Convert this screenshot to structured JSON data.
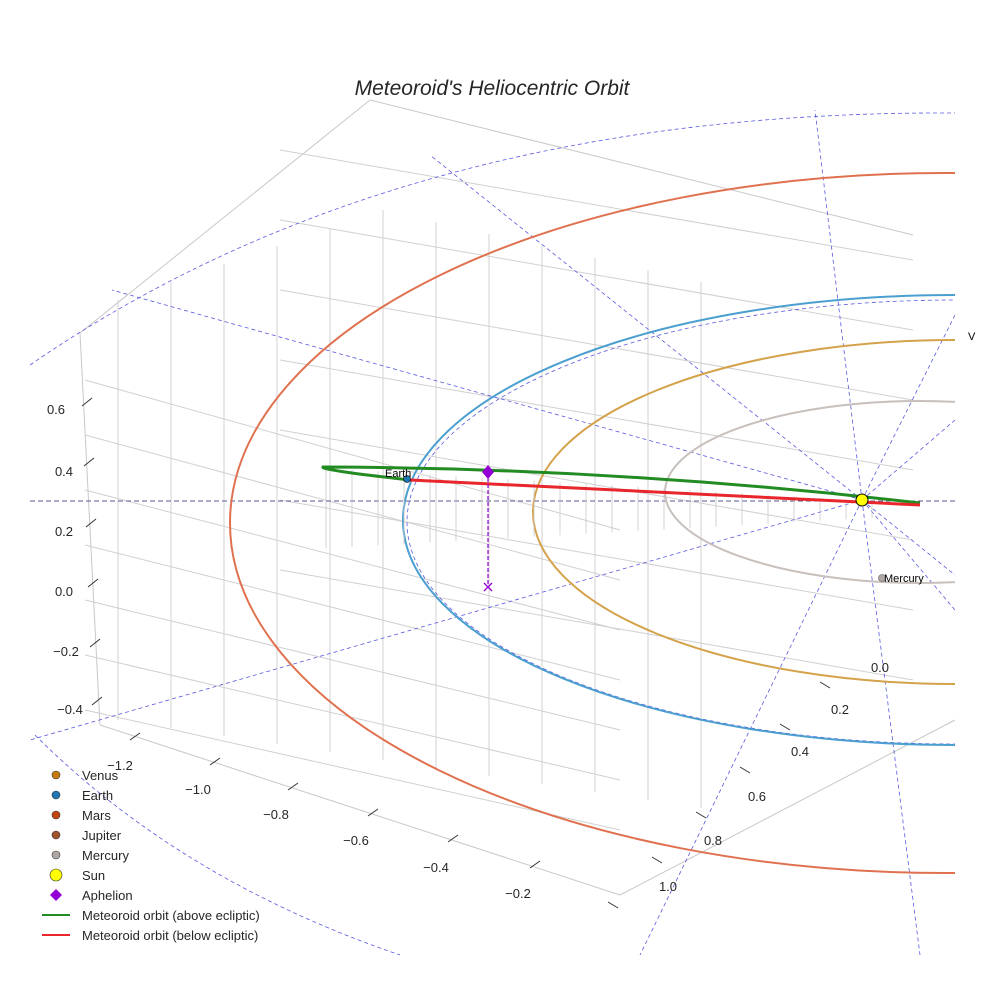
{
  "chart_data": {
    "type": "scatter",
    "projection": "3d",
    "title": "Meteoroid's Heliocentric Orbit",
    "axes": {
      "x": {
        "ticks": [
          "−1.2",
          "−1.0",
          "−0.8",
          "−0.6",
          "−0.4",
          "−0.2"
        ]
      },
      "y": {
        "ticks": [
          "0.0",
          "0.2",
          "0.4",
          "0.6",
          "0.8",
          "1.0"
        ]
      },
      "z": {
        "ticks": [
          "0.6",
          "0.4",
          "0.2",
          "0.0",
          "−0.2",
          "−0.4"
        ]
      }
    },
    "point_labels": {
      "earth": "Earth",
      "mercury": "Mercury",
      "venus_clipped": "V"
    },
    "legend": {
      "placement": "lower-left",
      "entries": [
        {
          "label": "Venus",
          "marker": "circle",
          "color": "#c77a0f"
        },
        {
          "label": "Earth",
          "marker": "circle",
          "color": "#1f77b4"
        },
        {
          "label": "Mars",
          "marker": "circle",
          "color": "#c1440e"
        },
        {
          "label": "Jupiter",
          "marker": "circle",
          "color": "#a0522d"
        },
        {
          "label": "Mercury",
          "marker": "circle",
          "color": "#b0a8a4"
        },
        {
          "label": "Sun",
          "marker": "circle",
          "color": "#ffff00"
        },
        {
          "label": "Aphelion",
          "marker": "diamond",
          "color": "#9400d3"
        },
        {
          "label": "Meteoroid orbit (above ecliptic)",
          "marker": "line",
          "color": "#228b22"
        },
        {
          "label": "Meteoroid orbit (below ecliptic)",
          "marker": "line",
          "color": "#e8262b"
        }
      ]
    },
    "orbit_colors": {
      "mars": "#e0714f",
      "earth": "#4a9fd0",
      "venus": "#d4a24a",
      "mercury": "#c8c0bc",
      "guides": "#5a5ae0"
    }
  }
}
